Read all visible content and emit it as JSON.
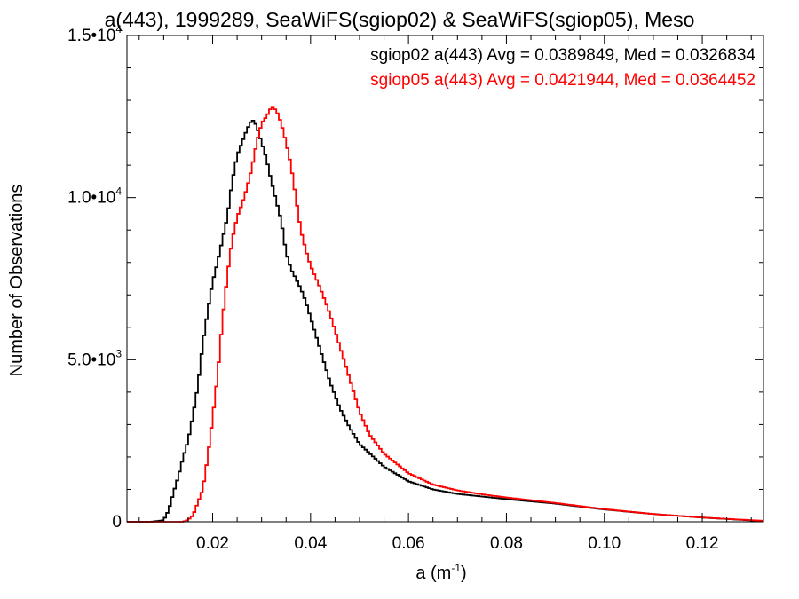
{
  "chart_data": {
    "type": "line",
    "title": "a(443), 1999289, SeaWiFS(sgiop02) & SeaWiFS(sgiop05), Meso",
    "xlabel": "a (m",
    "xlabel_sup": "-1",
    "xlabel_close": ")",
    "ylabel": "Number of Observations",
    "xlim": [
      0.0025,
      0.1325
    ],
    "ylim": [
      0,
      15000
    ],
    "xticks": [
      {
        "value": 0.02,
        "label": "0.02"
      },
      {
        "value": 0.04,
        "label": "0.04"
      },
      {
        "value": 0.06,
        "label": "0.06"
      },
      {
        "value": 0.08,
        "label": "0.08"
      },
      {
        "value": 0.1,
        "label": "0.10"
      },
      {
        "value": 0.12,
        "label": "0.12"
      }
    ],
    "yticks": [
      {
        "value": 0,
        "base": "0",
        "exp": ""
      },
      {
        "value": 5000,
        "base": "5.0•10",
        "exp": "3"
      },
      {
        "value": 10000,
        "base": "1.0•10",
        "exp": "4"
      },
      {
        "value": 15000,
        "base": "1.5•10",
        "exp": "4"
      }
    ],
    "grid": false,
    "legend_position": "top-right",
    "series": [
      {
        "name": "sgiop02",
        "color": "#000000",
        "stats": "sgiop02 a(443) Avg = 0.0389849, Med = 0.0326834",
        "x": [
          0.0025,
          0.0075,
          0.01,
          0.011,
          0.012,
          0.013,
          0.014,
          0.015,
          0.016,
          0.017,
          0.018,
          0.019,
          0.02,
          0.021,
          0.022,
          0.023,
          0.024,
          0.025,
          0.026,
          0.027,
          0.028,
          0.0285,
          0.029,
          0.03,
          0.031,
          0.032,
          0.033,
          0.034,
          0.035,
          0.036,
          0.037,
          0.038,
          0.039,
          0.04,
          0.042,
          0.044,
          0.046,
          0.048,
          0.05,
          0.055,
          0.06,
          0.065,
          0.07,
          0.075,
          0.08,
          0.09,
          0.1,
          0.11,
          0.12,
          0.1325
        ],
        "y": [
          0,
          0,
          50,
          350,
          900,
          1400,
          2000,
          2500,
          3300,
          4200,
          5500,
          6500,
          7400,
          8000,
          8700,
          9400,
          10500,
          11300,
          11700,
          12100,
          12400,
          12350,
          12200,
          11700,
          11200,
          10500,
          9900,
          9300,
          8300,
          7800,
          7500,
          7200,
          6800,
          6300,
          5300,
          4300,
          3500,
          2900,
          2400,
          1700,
          1250,
          1000,
          860,
          780,
          700,
          560,
          380,
          240,
          130,
          20
        ]
      },
      {
        "name": "sgiop05",
        "color": "#ff0000",
        "stats": "sgiop05 a(443) Avg = 0.0421944, Med = 0.0364452",
        "x": [
          0.0025,
          0.014,
          0.015,
          0.016,
          0.017,
          0.018,
          0.019,
          0.02,
          0.021,
          0.022,
          0.023,
          0.024,
          0.025,
          0.026,
          0.027,
          0.028,
          0.029,
          0.03,
          0.031,
          0.032,
          0.033,
          0.034,
          0.035,
          0.036,
          0.037,
          0.038,
          0.039,
          0.04,
          0.042,
          0.044,
          0.046,
          0.048,
          0.05,
          0.052,
          0.055,
          0.06,
          0.065,
          0.07,
          0.075,
          0.08,
          0.09,
          0.1,
          0.11,
          0.12,
          0.1325
        ],
        "y": [
          0,
          0,
          60,
          200,
          600,
          1000,
          2000,
          3200,
          4500,
          6200,
          7600,
          8700,
          9400,
          9800,
          10300,
          10900,
          11700,
          12300,
          12500,
          12800,
          12700,
          12300,
          11700,
          11000,
          10000,
          9000,
          8400,
          7900,
          7200,
          6400,
          5400,
          4400,
          3400,
          2700,
          2100,
          1500,
          1150,
          970,
          850,
          750,
          580,
          390,
          240,
          130,
          30
        ]
      }
    ]
  }
}
